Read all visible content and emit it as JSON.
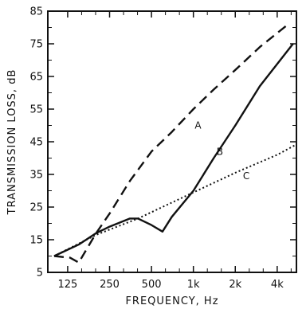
{
  "chart_data": {
    "type": "line",
    "xlabel": "FREQUENCY, Hz",
    "ylabel": "TRANSMISSION LOSS, dB",
    "x_scale": "log",
    "xlim": [
      90,
      5500
    ],
    "ylim": [
      5,
      85
    ],
    "x_ticks": [
      125,
      250,
      500,
      1000,
      2000,
      4000
    ],
    "x_tick_labels": [
      "125",
      "250",
      "500",
      "1k",
      "2k",
      "4k"
    ],
    "y_ticks": [
      5,
      15,
      25,
      35,
      45,
      55,
      65,
      75,
      85
    ],
    "y_tick_labels": [
      "5",
      "15",
      "25",
      "35",
      "45",
      "55",
      "65",
      "75",
      "85"
    ],
    "grid": false,
    "series": [
      {
        "name": "A",
        "style": "dashed",
        "color": "#111111",
        "points": [
          [
            100,
            10
          ],
          [
            130,
            9.5
          ],
          [
            150,
            8
          ],
          [
            200,
            17
          ],
          [
            250,
            23
          ],
          [
            350,
            33
          ],
          [
            500,
            42
          ],
          [
            700,
            48
          ],
          [
            1000,
            55
          ],
          [
            1400,
            61
          ],
          [
            2000,
            67
          ],
          [
            3000,
            74
          ],
          [
            4800,
            81
          ]
        ]
      },
      {
        "name": "B",
        "style": "solid",
        "color": "#111111",
        "points": [
          [
            100,
            10
          ],
          [
            150,
            13.5
          ],
          [
            200,
            17
          ],
          [
            250,
            19
          ],
          [
            350,
            21.5
          ],
          [
            400,
            21.5
          ],
          [
            500,
            19.5
          ],
          [
            600,
            17.5
          ],
          [
            700,
            22
          ],
          [
            1000,
            30
          ],
          [
            1400,
            40
          ],
          [
            2000,
            50
          ],
          [
            3000,
            62
          ],
          [
            5200,
            75
          ]
        ]
      },
      {
        "name": "C",
        "style": "dotted",
        "color": "#111111",
        "points": [
          [
            100,
            10
          ],
          [
            200,
            16.5
          ],
          [
            400,
            21.5
          ],
          [
            1000,
            29.5
          ],
          [
            2000,
            35.5
          ],
          [
            4000,
            41
          ],
          [
            5400,
            44
          ]
        ]
      }
    ],
    "annotations": [
      {
        "text": "A",
        "x": 1080,
        "y": 49
      },
      {
        "text": "B",
        "x": 1550,
        "y": 41
      },
      {
        "text": "C",
        "x": 2400,
        "y": 33.5
      }
    ]
  }
}
